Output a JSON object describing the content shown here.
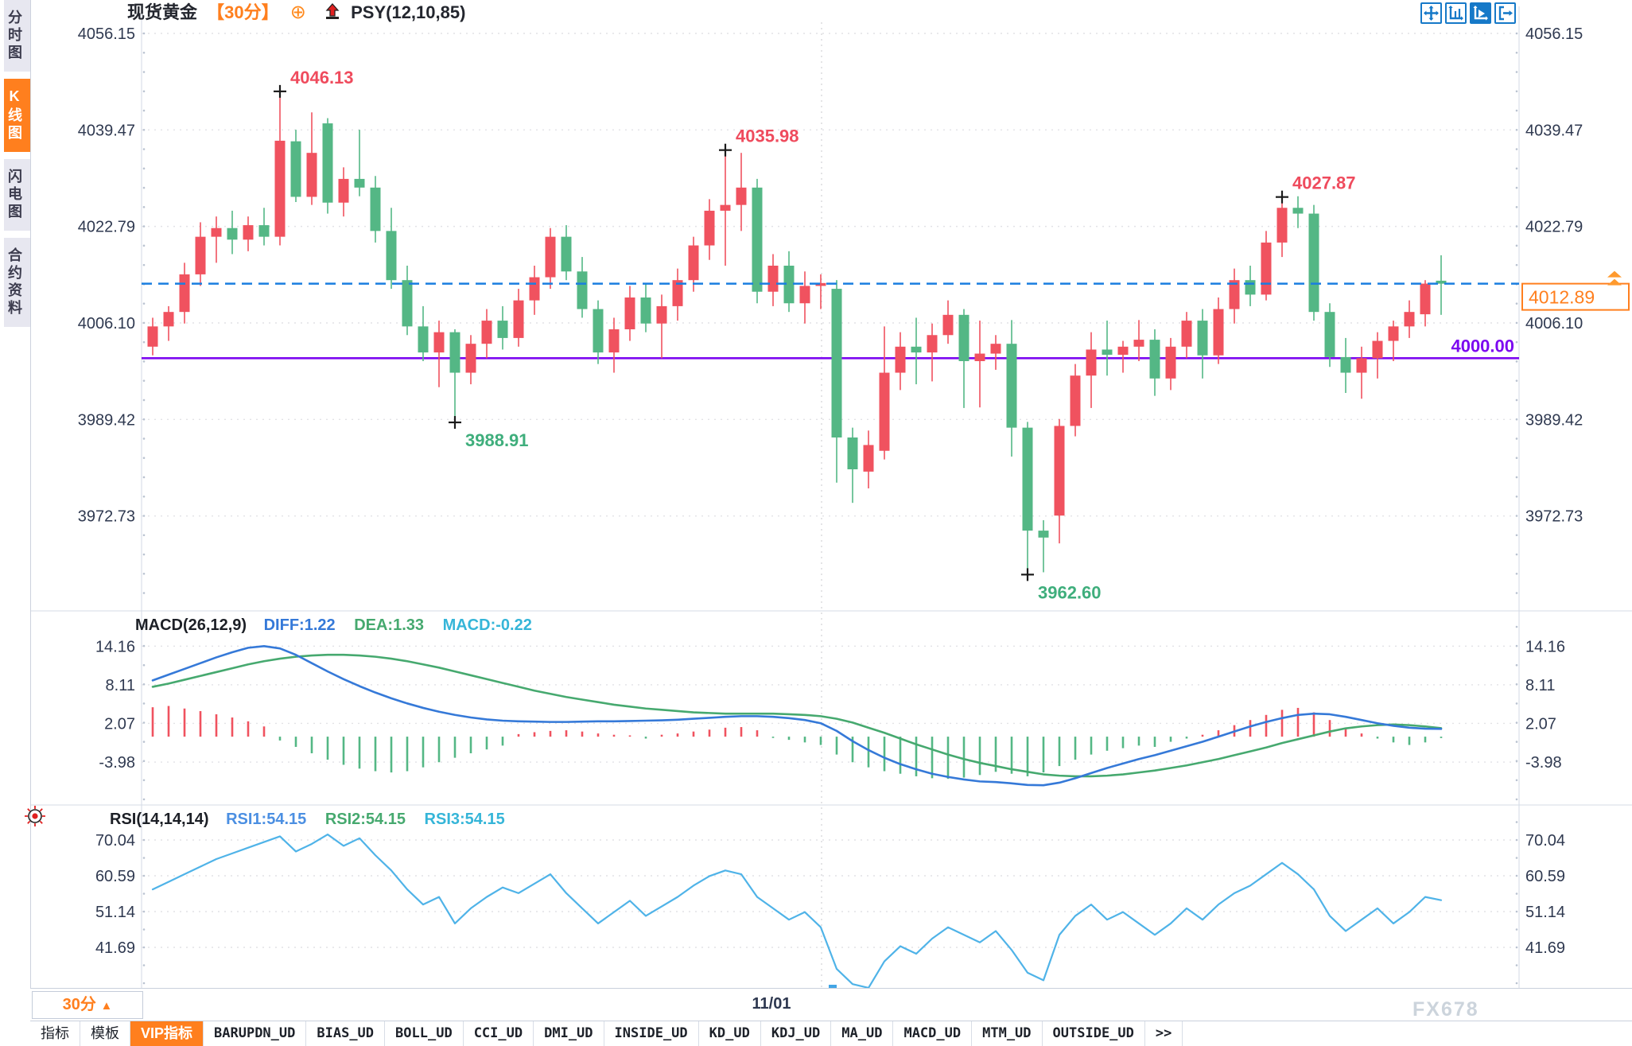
{
  "title": {
    "symbol": "现货黄金",
    "period": "【30分】",
    "plus_icon": "⊕",
    "indicator": "PSY(12,10,85)"
  },
  "toolbar": {
    "buttons": [
      "pan",
      "zoom-axes",
      "zoom-axes-active",
      "exit-right"
    ]
  },
  "sidebar": {
    "items": [
      {
        "label": "分时图",
        "active": false
      },
      {
        "label": "K线图",
        "active": true
      },
      {
        "label": "闪电图",
        "active": false
      },
      {
        "label": "合约资料",
        "active": false
      }
    ]
  },
  "axes": {
    "main_labels": [
      "4056.15",
      "4039.47",
      "4022.79",
      "4006.10",
      "3989.42",
      "3972.73"
    ],
    "macd_labels": [
      "14.16",
      "8.11",
      "2.07",
      "-3.98"
    ],
    "rsi_labels": [
      "70.04",
      "60.59",
      "51.14",
      "41.69"
    ]
  },
  "overlays": {
    "current_price": "4012.89",
    "support_line": "4000.00"
  },
  "panels": {
    "macd": {
      "name": "MACD(26,12,9)",
      "diff": "DIFF:1.22",
      "dea": "DEA:1.33",
      "macd": "MACD:-0.22"
    },
    "rsi": {
      "name": "RSI(14,14,14)",
      "rsi1": "RSI1:54.15",
      "rsi2": "RSI2:54.15",
      "rsi3": "RSI3:54.15"
    }
  },
  "bottom": {
    "timeframe": "30分",
    "triangle": "▲",
    "date": "11/01",
    "watermark": "FX678"
  },
  "tabs": {
    "items": [
      "指标",
      "模板",
      "VIP指标",
      "BARUPDN_UD",
      "BIAS_UD",
      "BOLL_UD",
      "CCI_UD",
      "DMI_UD",
      "INSIDE_UD",
      "KD_UD",
      "KDJ_UD",
      "MA_UD",
      "MACD_UD",
      "MTM_UD",
      "OUTSIDE_UD",
      ">>"
    ],
    "active": "VIP指标"
  },
  "colors": {
    "up": "#f0525f",
    "down": "#54b785",
    "accent": "#ff7f1e",
    "current_line": "#1a7ee0",
    "support": "#7c08f0",
    "diff": "#3579d8",
    "dea": "#46a96f",
    "macd_cyan": "#35b5d8",
    "rsi_line": "#4fb3e8",
    "ann_high": "#ef4b5d",
    "ann_low": "#3fae7c",
    "axis_text": "#2f3950",
    "grid": "#e2e2e6"
  },
  "chart_data": [
    {
      "type": "candlestick",
      "title": "现货黄金 30分 K线",
      "x_date_label": "11/01",
      "ylabel": "price",
      "ylim": [
        3958,
        4060
      ],
      "y_ticks": [
        4056.15,
        4039.47,
        4022.79,
        4006.1,
        3989.42,
        3972.73
      ],
      "price_lines": {
        "current": 4012.89,
        "support": 4000.0
      },
      "annotations": [
        {
          "text": "4046.13",
          "candle": 8,
          "price": 4046.13,
          "side": "high"
        },
        {
          "text": "4035.98",
          "candle": 36,
          "price": 4035.98,
          "side": "high"
        },
        {
          "text": "4027.87",
          "candle": 71,
          "price": 4027.87,
          "side": "high"
        },
        {
          "text": "3988.91",
          "candle": 19,
          "price": 3988.91,
          "side": "low"
        },
        {
          "text": "3962.60",
          "candle": 55,
          "price": 3962.6,
          "side": "low"
        }
      ],
      "candles_ohlc": [
        [
          4002.0,
          4007.0,
          4000.5,
          4005.5
        ],
        [
          4005.5,
          4009.0,
          4003.0,
          4008.0
        ],
        [
          4008.0,
          4016.5,
          4006.0,
          4014.5
        ],
        [
          4014.5,
          4023.5,
          4012.5,
          4021.0
        ],
        [
          4021.0,
          4024.5,
          4016.5,
          4022.5
        ],
        [
          4022.5,
          4025.5,
          4018.0,
          4020.5
        ],
        [
          4020.5,
          4024.5,
          4018.5,
          4023.0
        ],
        [
          4023.0,
          4026.0,
          4019.5,
          4021.0
        ],
        [
          4021.0,
          4046.1,
          4019.5,
          4037.6
        ],
        [
          4037.5,
          4039.5,
          4027.0,
          4027.9
        ],
        [
          4027.9,
          4042.5,
          4026.5,
          4035.5
        ],
        [
          4040.6,
          4041.5,
          4025.0,
          4026.9
        ],
        [
          4026.9,
          4033.0,
          4024.5,
          4031.0
        ],
        [
          4031.0,
          4039.5,
          4028.0,
          4029.5
        ],
        [
          4029.5,
          4031.5,
          4020.0,
          4022.0
        ],
        [
          4022.0,
          4026.0,
          4012.0,
          4013.5
        ],
        [
          4013.5,
          4016.0,
          4004.0,
          4005.5
        ],
        [
          4005.5,
          4009.0,
          3999.5,
          4001.0
        ],
        [
          4001.0,
          4006.5,
          3995.0,
          4004.5
        ],
        [
          4004.5,
          4005.0,
          3988.9,
          3997.5
        ],
        [
          3997.5,
          4004.0,
          3995.5,
          4002.5
        ],
        [
          4002.5,
          4008.5,
          4000.0,
          4006.5
        ],
        [
          4006.5,
          4009.0,
          4001.5,
          4003.5
        ],
        [
          4003.5,
          4012.0,
          4002.0,
          4010.0
        ],
        [
          4010.0,
          4016.0,
          4007.5,
          4014.0
        ],
        [
          4014.0,
          4022.5,
          4012.0,
          4021.0
        ],
        [
          4021.0,
          4023.0,
          4013.5,
          4015.0
        ],
        [
          4015.0,
          4017.5,
          4007.0,
          4008.5
        ],
        [
          4008.5,
          4010.0,
          3999.0,
          4001.0
        ],
        [
          4001.0,
          4007.0,
          3997.5,
          4005.0
        ],
        [
          4005.0,
          4012.5,
          4003.0,
          4010.5
        ],
        [
          4010.5,
          4013.0,
          4004.5,
          4006.0
        ],
        [
          4006.0,
          4011.0,
          4000.0,
          4009.0
        ],
        [
          4009.0,
          4015.5,
          4006.5,
          4013.5
        ],
        [
          4013.5,
          4021.0,
          4011.5,
          4019.5
        ],
        [
          4019.5,
          4027.5,
          4017.0,
          4025.5
        ],
        [
          4025.5,
          4036.0,
          4016.0,
          4026.5
        ],
        [
          4026.5,
          4035.5,
          4022.0,
          4029.5
        ],
        [
          4029.5,
          4031.0,
          4009.5,
          4011.5
        ],
        [
          4011.5,
          4018.0,
          4009.0,
          4016.0
        ],
        [
          4016.0,
          4018.5,
          4008.0,
          4009.5
        ],
        [
          4009.5,
          4015.0,
          4006.0,
          4012.5
        ],
        [
          4012.5,
          4014.5,
          4008.5,
          4013.0
        ],
        [
          4012.0,
          4013.5,
          3978.5,
          3986.3
        ],
        [
          3986.3,
          3988.0,
          3975.0,
          3980.8
        ],
        [
          3980.4,
          3987.5,
          3977.5,
          3985.0
        ],
        [
          3984.0,
          4005.5,
          3982.5,
          3997.5
        ],
        [
          3997.5,
          4004.5,
          3994.5,
          4002.0
        ],
        [
          4002.0,
          4007.0,
          3995.5,
          4001.0
        ],
        [
          4001.0,
          4006.0,
          3996.0,
          4004.0
        ],
        [
          4004.0,
          4010.0,
          4002.5,
          4007.5
        ],
        [
          4007.5,
          4008.5,
          3991.4,
          3999.5
        ],
        [
          3999.5,
          4006.5,
          3991.5,
          4000.8
        ],
        [
          4000.8,
          4004.0,
          3998.0,
          4002.5
        ],
        [
          4002.5,
          4006.6,
          3983.0,
          3988.0
        ],
        [
          3988.0,
          3989.0,
          3962.6,
          3970.2
        ],
        [
          3970.2,
          3972.0,
          3963.0,
          3969.0
        ],
        [
          3972.8,
          3989.5,
          3968.0,
          3988.3
        ],
        [
          3988.3,
          3999.0,
          3986.5,
          3997.0
        ],
        [
          3997.0,
          4004.5,
          3991.4,
          4001.5
        ],
        [
          4001.5,
          4006.5,
          3997.0,
          4000.6
        ],
        [
          4000.6,
          4003.0,
          3997.5,
          4002.0
        ],
        [
          4002.0,
          4006.6,
          3999.5,
          4003.2
        ],
        [
          4003.2,
          4005.0,
          3993.5,
          3996.5
        ],
        [
          3996.5,
          4003.5,
          3994.5,
          4002.0
        ],
        [
          4002.0,
          4008.0,
          4000.0,
          4006.5
        ],
        [
          4006.5,
          4008.5,
          3996.5,
          4000.5
        ],
        [
          4000.5,
          4010.5,
          3999.0,
          4008.5
        ],
        [
          4008.5,
          4015.5,
          4006.0,
          4013.5
        ],
        [
          4013.5,
          4016.0,
          4009.0,
          4011.0
        ],
        [
          4011.0,
          4022.0,
          4010.0,
          4020.0
        ],
        [
          4020.0,
          4027.9,
          4017.5,
          4026.0
        ],
        [
          4026.0,
          4028.0,
          4022.5,
          4025.0
        ],
        [
          4025.0,
          4026.5,
          4006.5,
          4008.0
        ],
        [
          4008.0,
          4009.5,
          3998.5,
          4000.2
        ],
        [
          4000.2,
          4003.5,
          3994.0,
          3997.5
        ],
        [
          3997.5,
          4002.0,
          3993.0,
          4000.0
        ],
        [
          4000.0,
          4004.5,
          3996.5,
          4003.0
        ],
        [
          4003.0,
          4006.5,
          3999.5,
          4005.5
        ],
        [
          4005.5,
          4010.0,
          4003.5,
          4008.0
        ],
        [
          4007.6,
          4013.5,
          4005.5,
          4012.9
        ],
        [
          4013.4,
          4017.8,
          4007.5,
          4012.89
        ]
      ]
    },
    {
      "type": "macd",
      "title": "MACD(26,12,9)",
      "readout": {
        "diff": 1.22,
        "dea": 1.33,
        "macd": -0.22
      },
      "y_ticks": [
        14.16,
        8.11,
        2.07,
        -3.98
      ],
      "hist": [
        4.6,
        4.8,
        4.4,
        4.0,
        3.5,
        3.0,
        2.4,
        1.6,
        -0.6,
        -1.6,
        -2.6,
        -3.6,
        -4.4,
        -5.0,
        -5.4,
        -5.6,
        -5.4,
        -4.8,
        -4.0,
        -3.3,
        -2.6,
        -2.0,
        -1.4,
        0.4,
        0.7,
        0.9,
        1.0,
        0.8,
        0.5,
        0.3,
        0.2,
        -0.3,
        0.3,
        0.5,
        0.8,
        1.1,
        1.4,
        1.5,
        1.0,
        -0.2,
        -0.5,
        -0.9,
        -1.3,
        -2.8,
        -4.0,
        -4.8,
        -5.4,
        -5.8,
        -6.2,
        -6.5,
        -6.6,
        -6.4,
        -6.0,
        -5.5,
        -5.8,
        -6.2,
        -5.6,
        -4.6,
        -3.6,
        -2.8,
        -2.2,
        -1.8,
        -1.4,
        -1.6,
        -0.8,
        -0.3,
        0.3,
        1.0,
        1.8,
        2.6,
        3.4,
        4.2,
        4.5,
        3.8,
        2.6,
        1.4,
        0.5,
        -0.3,
        -0.9,
        -1.3,
        -0.9,
        -0.22
      ],
      "diff_line": [
        8.8,
        9.7,
        10.6,
        11.5,
        12.4,
        13.2,
        13.9,
        14.16,
        13.8,
        12.8,
        11.5,
        10.2,
        9.0,
        7.9,
        6.9,
        6.0,
        5.2,
        4.5,
        3.9,
        3.4,
        3.0,
        2.7,
        2.5,
        2.4,
        2.35,
        2.3,
        2.3,
        2.35,
        2.4,
        2.4,
        2.45,
        2.5,
        2.55,
        2.65,
        2.8,
        2.95,
        3.1,
        3.2,
        3.2,
        3.1,
        2.9,
        2.6,
        2.1,
        0.9,
        -0.7,
        -2.1,
        -3.3,
        -4.3,
        -5.1,
        -5.8,
        -6.3,
        -6.7,
        -7.0,
        -7.1,
        -7.3,
        -7.55,
        -7.6,
        -7.2,
        -6.5,
        -5.7,
        -4.9,
        -4.2,
        -3.5,
        -2.9,
        -2.2,
        -1.5,
        -0.8,
        0.0,
        0.8,
        1.6,
        2.3,
        2.9,
        3.4,
        3.6,
        3.5,
        3.1,
        2.6,
        2.1,
        1.7,
        1.4,
        1.25,
        1.22
      ],
      "dea_line": [
        7.8,
        8.3,
        8.9,
        9.5,
        10.1,
        10.7,
        11.3,
        11.8,
        12.2,
        12.5,
        12.7,
        12.8,
        12.8,
        12.7,
        12.5,
        12.2,
        11.8,
        11.3,
        10.8,
        10.2,
        9.6,
        9.0,
        8.4,
        7.8,
        7.2,
        6.7,
        6.2,
        5.8,
        5.4,
        5.0,
        4.7,
        4.4,
        4.2,
        4.0,
        3.8,
        3.7,
        3.6,
        3.6,
        3.6,
        3.6,
        3.5,
        3.4,
        3.2,
        2.8,
        2.2,
        1.4,
        0.6,
        -0.3,
        -1.2,
        -2.0,
        -2.8,
        -3.5,
        -4.1,
        -4.6,
        -5.1,
        -5.5,
        -5.9,
        -6.1,
        -6.2,
        -6.2,
        -6.1,
        -5.9,
        -5.6,
        -5.3,
        -4.9,
        -4.5,
        -4.0,
        -3.5,
        -2.9,
        -2.3,
        -1.7,
        -1.0,
        -0.4,
        0.2,
        0.8,
        1.3,
        1.6,
        1.8,
        1.9,
        1.8,
        1.6,
        1.33
      ]
    },
    {
      "type": "rsi",
      "title": "RSI(14,14,14)",
      "readout": {
        "rsi1": 54.15,
        "rsi2": 54.15,
        "rsi3": 54.15
      },
      "y_ticks": [
        70.04,
        60.59,
        51.14,
        41.69
      ],
      "rsi_line": [
        57,
        59,
        61,
        63,
        65,
        66.5,
        68,
        69.5,
        71,
        67,
        69,
        71.5,
        68.5,
        70.5,
        66,
        62,
        57,
        53,
        55,
        48,
        52,
        55,
        57.5,
        56,
        58.5,
        61,
        56,
        52,
        48,
        51,
        54,
        50,
        52.5,
        55,
        58,
        60.5,
        62,
        61,
        55,
        52,
        49,
        51,
        47,
        36,
        32,
        31,
        38,
        42,
        40,
        44,
        47,
        45,
        43,
        46,
        41,
        35,
        33,
        45,
        50,
        53,
        49,
        51,
        48,
        45,
        48,
        52,
        49,
        53,
        56,
        58,
        61,
        64,
        61,
        57,
        50,
        46,
        49,
        52,
        48,
        51,
        55,
        54.15
      ]
    }
  ]
}
